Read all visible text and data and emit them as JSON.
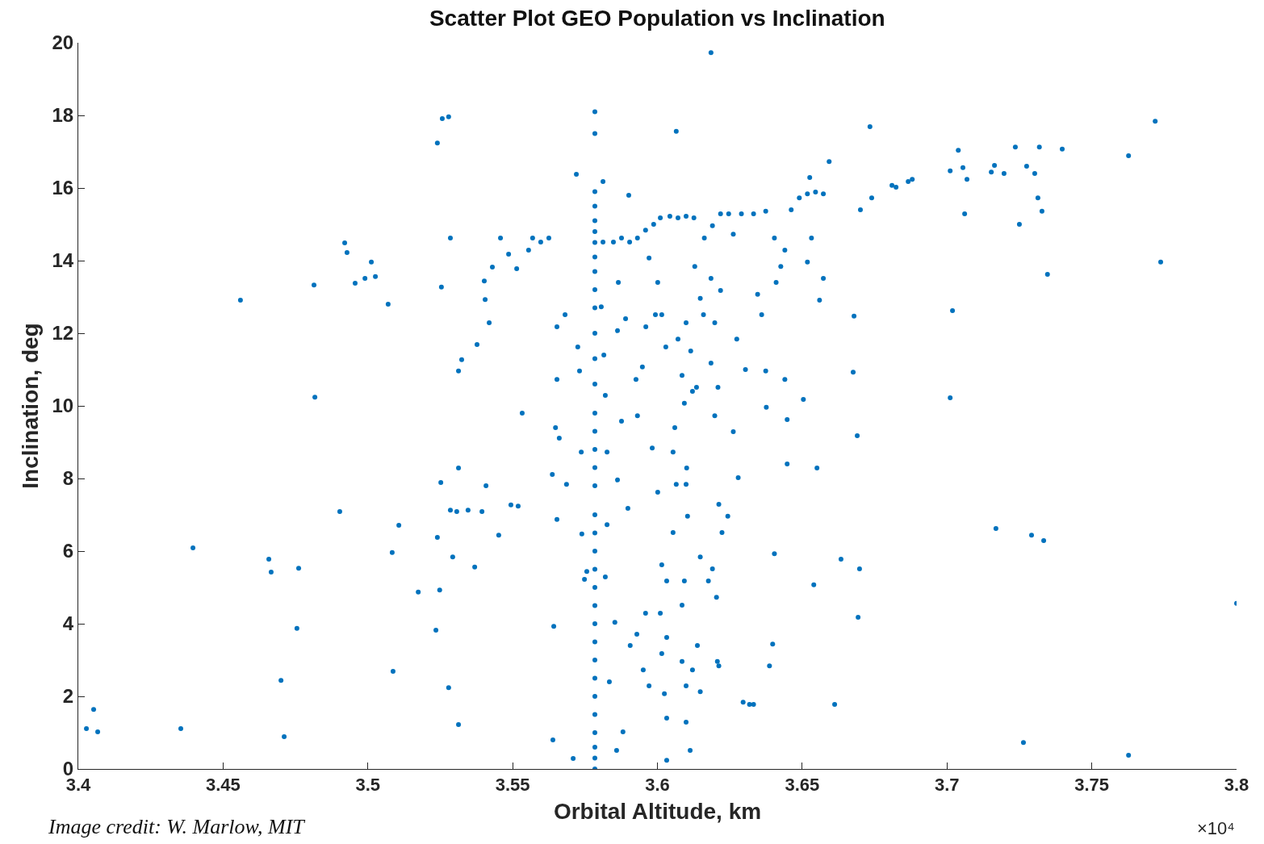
{
  "chart_data": {
    "type": "scatter",
    "title": "Scatter Plot GEO Population vs Inclination",
    "xlabel": "Orbital Altitude, km",
    "ylabel": "Inclination, deg",
    "annotations": [
      "Image credit: W. Marlow, MIT",
      "×10⁴"
    ],
    "xlim": [
      3.4,
      3.8
    ],
    "ylim": [
      0,
      20
    ],
    "xticks": [
      3.4,
      3.45,
      3.5,
      3.55,
      3.6,
      3.65,
      3.7,
      3.75,
      3.8
    ],
    "yticks": [
      0,
      2,
      4,
      6,
      8,
      10,
      12,
      14,
      16,
      18,
      20
    ],
    "grid": false,
    "marker": "circle",
    "series": [
      {
        "color": "#0072bd",
        "x": [
          3.4028,
          3.4053,
          3.4067,
          3.4354,
          3.4396,
          3.47,
          3.4711,
          3.4658,
          3.4666,
          3.456,
          3.4761,
          3.4755,
          3.4814,
          3.4817,
          3.4903,
          3.492,
          3.4928,
          3.4956,
          3.499,
          3.5012,
          3.5026,
          3.507,
          3.5084,
          3.5087,
          3.5107,
          3.5174,
          3.5235,
          3.524,
          3.5248,
          3.5252,
          3.5279,
          3.5285,
          3.5293,
          3.5313,
          3.5313,
          3.5313,
          3.5324,
          3.524,
          3.5257,
          3.5279,
          3.5254,
          3.5285,
          3.5307,
          3.5346,
          3.5369,
          3.5394,
          3.5408,
          3.5377,
          3.5402,
          3.5405,
          3.5419,
          3.543,
          3.5458,
          3.5486,
          3.5514,
          3.5555,
          3.5452,
          3.5494,
          3.5519,
          3.5533,
          3.5569,
          3.5597,
          3.5625,
          3.5639,
          3.5642,
          3.5648,
          3.5653,
          3.5637,
          3.5653,
          3.5681,
          3.5661,
          3.5653,
          3.5686,
          3.5709,
          3.572,
          3.5737,
          3.5739,
          3.5725,
          3.5731,
          3.5748,
          3.5756,
          3.5784,
          3.5784,
          3.5784,
          3.5784,
          3.5784,
          3.5784,
          3.5784,
          3.5784,
          3.5784,
          3.5784,
          3.5784,
          3.5784,
          3.5784,
          3.5784,
          3.5784,
          3.5784,
          3.5784,
          3.5784,
          3.5784,
          3.5784,
          3.5784,
          3.5784,
          3.5784,
          3.5784,
          3.5784,
          3.5784,
          3.5784,
          3.5784,
          3.5784,
          3.5784,
          3.5784,
          3.5784,
          3.5784,
          3.5784,
          3.5784,
          3.5806,
          3.5815,
          3.582,
          3.5812,
          3.5812,
          3.5826,
          3.5826,
          3.582,
          3.5834,
          3.5853,
          3.5859,
          3.5881,
          3.5848,
          3.5876,
          3.5904,
          3.5931,
          3.5959,
          3.5987,
          3.5865,
          3.5862,
          3.589,
          3.5876,
          3.5862,
          3.5901,
          3.5898,
          3.5906,
          3.5929,
          3.5951,
          3.5971,
          3.5959,
          3.5926,
          3.5948,
          3.596,
          3.5931,
          3.5982,
          3.5971,
          3.6001,
          3.6015,
          3.6029,
          3.5993,
          3.6001,
          3.6015,
          3.6032,
          3.601,
          3.6032,
          3.6015,
          3.6024,
          3.6032,
          3.6032,
          3.601,
          3.6043,
          3.6071,
          3.6099,
          3.6126,
          3.606,
          3.6054,
          3.6065,
          3.6054,
          3.6065,
          3.6071,
          3.6085,
          3.6099,
          3.6085,
          3.6093,
          3.6085,
          3.6099,
          3.6099,
          3.6113,
          3.6099,
          3.6101,
          3.6104,
          3.6093,
          3.6115,
          3.6121,
          3.6135,
          3.6129,
          3.6148,
          3.6159,
          3.6138,
          3.6121,
          3.6148,
          3.6148,
          3.6162,
          3.619,
          3.6218,
          3.6246,
          3.6176,
          3.619,
          3.6204,
          3.6207,
          3.6212,
          3.6185,
          3.6198,
          3.6209,
          3.6212,
          3.6223,
          3.6243,
          3.6185,
          3.6185,
          3.6198,
          3.6218,
          3.6262,
          3.6274,
          3.6279,
          3.6296,
          3.6318,
          3.6332,
          3.6262,
          3.629,
          3.6332,
          3.6374,
          3.6304,
          3.6346,
          3.636,
          3.6374,
          3.6376,
          3.6387,
          3.6398,
          3.6404,
          3.641,
          3.6426,
          3.644,
          3.644,
          3.6448,
          3.6448,
          3.6404,
          3.6462,
          3.649,
          3.6518,
          3.6546,
          3.6573,
          3.6504,
          3.6518,
          3.6532,
          3.6573,
          3.656,
          3.654,
          3.6551,
          3.6526,
          3.6593,
          3.6612,
          3.6634,
          3.6679,
          3.6676,
          3.669,
          3.6698,
          3.6693,
          3.6701,
          3.6734,
          3.674,
          3.681,
          3.6824,
          3.6866,
          3.688,
          3.7011,
          3.7019,
          3.7011,
          3.7039,
          3.7055,
          3.7061,
          3.7069,
          3.7153,
          3.7164,
          3.7197,
          3.7236,
          3.725,
          3.7275,
          3.7303,
          3.7319,
          3.7314,
          3.7328,
          3.7347,
          3.7398,
          3.7169,
          3.7292,
          3.7334,
          3.7264,
          3.7627,
          3.7627,
          3.7719,
          3.7738,
          3.8
        ],
        "values": [
          1.11,
          1.64,
          1.02,
          1.11,
          6.09,
          2.44,
          0.89,
          5.78,
          5.42,
          12.91,
          5.53,
          3.87,
          13.33,
          10.24,
          7.09,
          14.49,
          14.22,
          13.38,
          13.51,
          13.96,
          13.56,
          12.8,
          5.96,
          2.69,
          6.71,
          4.87,
          3.82,
          6.38,
          4.93,
          7.89,
          2.24,
          7.13,
          5.84,
          1.22,
          8.29,
          10.96,
          11.27,
          17.24,
          17.91,
          17.96,
          13.27,
          14.62,
          7.09,
          7.13,
          5.56,
          7.09,
          7.8,
          11.69,
          13.44,
          12.93,
          12.29,
          13.82,
          14.62,
          14.18,
          13.78,
          14.29,
          6.44,
          7.27,
          7.24,
          9.8,
          14.62,
          14.51,
          14.62,
          0.8,
          3.93,
          9.4,
          10.73,
          8.11,
          12.18,
          12.51,
          9.11,
          6.87,
          7.84,
          0.29,
          16.38,
          8.73,
          6.47,
          11.62,
          10.96,
          5.22,
          5.44,
          0,
          0.3,
          0.6,
          1,
          1.5,
          2,
          2.5,
          3,
          3.5,
          4,
          4.5,
          5,
          5.5,
          6,
          6.5,
          7,
          7.8,
          8.3,
          8.8,
          9.3,
          9.8,
          10.6,
          11.3,
          12,
          12.7,
          13.2,
          13.7,
          14.1,
          14.5,
          14.8,
          15.1,
          15.5,
          15.9,
          17.5,
          18.1,
          12.73,
          11.4,
          10.29,
          14.51,
          16.18,
          8.73,
          6.73,
          5.29,
          2.4,
          4.04,
          0.51,
          1.02,
          14.51,
          14.62,
          14.51,
          14.62,
          14.84,
          15,
          13.4,
          12.07,
          12.4,
          9.58,
          7.96,
          15.8,
          7.18,
          3.4,
          3.71,
          2.73,
          2.29,
          4.29,
          10.73,
          11.07,
          12.18,
          9.73,
          8.84,
          14.07,
          13.4,
          12.51,
          11.62,
          12.51,
          7.62,
          5.62,
          5.18,
          4.29,
          3.62,
          3.18,
          2.07,
          1.4,
          0.24,
          15.18,
          15.22,
          15.18,
          15.22,
          15.18,
          9.4,
          8.73,
          7.84,
          6.51,
          17.56,
          11.84,
          10.84,
          12.29,
          4.51,
          5.18,
          2.96,
          2.29,
          1.29,
          0.51,
          7.84,
          8.29,
          6.96,
          10.07,
          11.51,
          10.4,
          10.51,
          13.84,
          12.96,
          12.51,
          3.4,
          2.73,
          2.13,
          5.84,
          14.62,
          14.96,
          15.29,
          15.29,
          5.18,
          5.51,
          4.73,
          2.96,
          2.84,
          11.18,
          9.73,
          10.51,
          7.29,
          6.51,
          6.96,
          19.73,
          13.51,
          12.29,
          13.18,
          9.29,
          11.84,
          8.02,
          1.84,
          1.78,
          1.78,
          14.73,
          15.29,
          15.29,
          15.36,
          11,
          13.07,
          12.51,
          10.96,
          9.96,
          2.84,
          3.44,
          5.93,
          13.4,
          13.84,
          14.29,
          10.73,
          9.62,
          8.4,
          14.62,
          15.4,
          15.73,
          15.84,
          15.89,
          15.84,
          10.18,
          13.96,
          14.62,
          13.51,
          12.91,
          5.07,
          8.29,
          16.29,
          16.73,
          1.78,
          5.78,
          12.47,
          10.93,
          9.18,
          5.51,
          4.18,
          15.4,
          17.69,
          15.73,
          16.07,
          16.02,
          16.18,
          16.24,
          16.47,
          12.62,
          10.22,
          17.04,
          16.56,
          15.29,
          16.24,
          16.44,
          16.62,
          16.4,
          17.13,
          15,
          16.6,
          16.4,
          17.13,
          15.73,
          15.36,
          13.62,
          17.07,
          6.62,
          6.44,
          6.29,
          0.73,
          16.89,
          0.38,
          17.84,
          13.96,
          4.56
        ]
      }
    ]
  }
}
